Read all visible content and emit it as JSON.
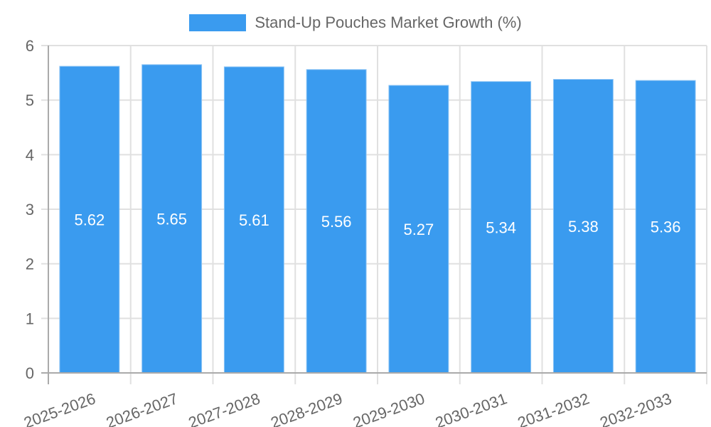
{
  "legend": {
    "label": "Stand-Up Pouches Market Growth (%)",
    "color": "#3a9bef"
  },
  "colors": {
    "bar": "#3a9bef",
    "bar_border": "#8ec5f5",
    "grid": "#e0e0e0",
    "axis": "#aaaaaa",
    "text": "#666666"
  },
  "chart_data": {
    "type": "bar",
    "title": "",
    "xlabel": "",
    "ylabel": "",
    "categories": [
      "2025-2026",
      "2026-2027",
      "2027-2028",
      "2028-2029",
      "2029-2030",
      "2030-2031",
      "2031-2032",
      "2032-2033"
    ],
    "series": [
      {
        "name": "Stand-Up Pouches Market Growth (%)",
        "values": [
          5.62,
          5.65,
          5.61,
          5.56,
          5.27,
          5.34,
          5.38,
          5.36
        ]
      }
    ],
    "ylim": [
      0,
      6
    ],
    "yticks": [
      0,
      1,
      2,
      3,
      4,
      5,
      6
    ],
    "grid": true,
    "legend_position": "top",
    "data_labels": true,
    "xtick_rotation": -20
  }
}
